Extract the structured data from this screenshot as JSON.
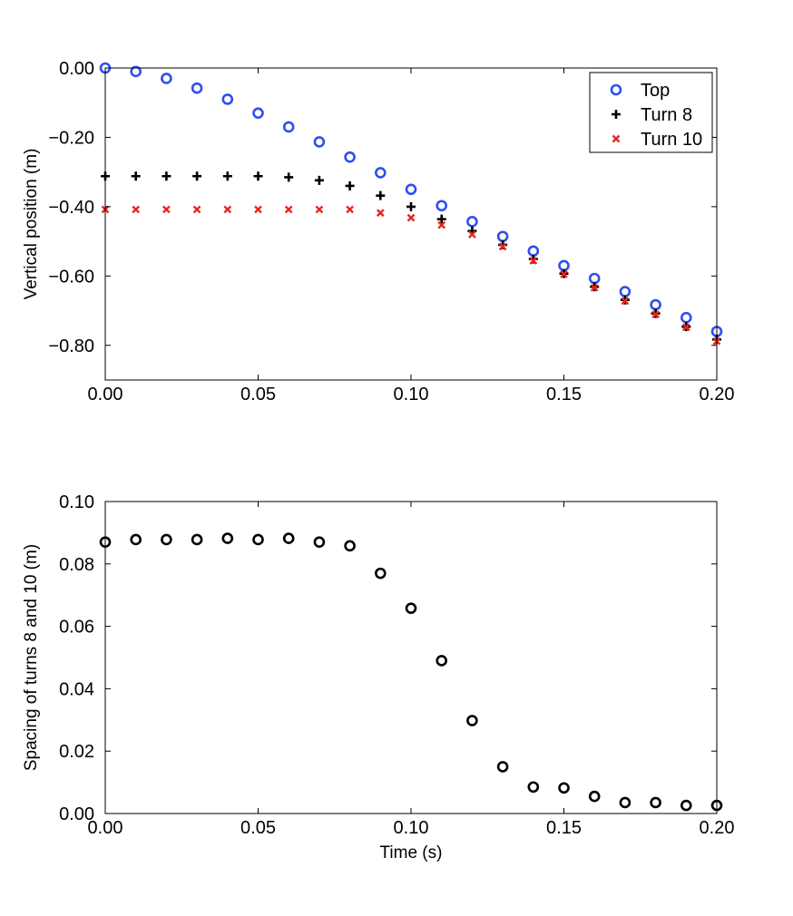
{
  "chart_data": [
    {
      "type": "scatter",
      "title": "",
      "xlabel": "",
      "ylabel": "Vertical position (m)",
      "xlim": [
        0,
        0.2
      ],
      "ylim": [
        -0.9,
        0.0
      ],
      "xticks": [
        0.0,
        0.05,
        0.1,
        0.15,
        0.2
      ],
      "xtick_labels": [
        "0.00",
        "0.05",
        "0.10",
        "0.15",
        "0.20"
      ],
      "yticks": [
        0.0,
        -0.2,
        -0.4,
        -0.6,
        -0.8
      ],
      "ytick_labels": [
        "0.00",
        "−0.20",
        "−0.40",
        "−0.60",
        "−0.80"
      ],
      "grid": false,
      "legend_position": "top-right",
      "x": [
        0.0,
        0.01,
        0.02,
        0.03,
        0.04,
        0.05,
        0.06,
        0.07,
        0.08,
        0.09,
        0.1,
        0.11,
        0.12,
        0.13,
        0.14,
        0.15,
        0.16,
        0.17,
        0.18,
        0.19,
        0.2
      ],
      "series": [
        {
          "name": "Top",
          "marker": "circle",
          "color": "#2e4ff0",
          "values": [
            0.0,
            -0.01,
            -0.03,
            -0.058,
            -0.09,
            -0.13,
            -0.17,
            -0.213,
            -0.257,
            -0.302,
            -0.35,
            -0.397,
            -0.443,
            -0.486,
            -0.528,
            -0.57,
            -0.607,
            -0.645,
            -0.683,
            -0.72,
            -0.76
          ]
        },
        {
          "name": "Turn 8",
          "marker": "plus",
          "color": "#000000",
          "values": [
            -0.312,
            -0.312,
            -0.312,
            -0.312,
            -0.312,
            -0.312,
            -0.315,
            -0.324,
            -0.34,
            -0.368,
            -0.4,
            -0.436,
            -0.47,
            -0.51,
            -0.551,
            -0.593,
            -0.631,
            -0.669,
            -0.708,
            -0.746,
            -0.783
          ]
        },
        {
          "name": "Turn 10",
          "marker": "x",
          "color": "#e8231f",
          "values": [
            -0.408,
            -0.408,
            -0.408,
            -0.408,
            -0.408,
            -0.408,
            -0.408,
            -0.408,
            -0.408,
            -0.418,
            -0.432,
            -0.453,
            -0.48,
            -0.515,
            -0.556,
            -0.595,
            -0.634,
            -0.672,
            -0.711,
            -0.748,
            -0.788
          ]
        }
      ]
    },
    {
      "type": "scatter",
      "title": "",
      "xlabel": "Time (s)",
      "ylabel": "Spacing of turns 8 and 10 (m)",
      "xlim": [
        0,
        0.2
      ],
      "ylim": [
        0.0,
        0.1
      ],
      "xticks": [
        0.0,
        0.05,
        0.1,
        0.15,
        0.2
      ],
      "xtick_labels": [
        "0.00",
        "0.05",
        "0.10",
        "0.15",
        "0.20"
      ],
      "yticks": [
        0.0,
        0.02,
        0.04,
        0.06,
        0.08,
        0.1
      ],
      "ytick_labels": [
        "0.00",
        "0.02",
        "0.04",
        "0.06",
        "0.08",
        "0.10"
      ],
      "grid": false,
      "x": [
        0.0,
        0.01,
        0.02,
        0.03,
        0.04,
        0.05,
        0.06,
        0.07,
        0.08,
        0.09,
        0.1,
        0.11,
        0.12,
        0.13,
        0.14,
        0.15,
        0.16,
        0.17,
        0.18,
        0.19,
        0.2
      ],
      "series": [
        {
          "name": "Spacing",
          "marker": "circle",
          "color": "#000000",
          "values": [
            0.087,
            0.0878,
            0.0878,
            0.0878,
            0.0882,
            0.0878,
            0.0882,
            0.087,
            0.0858,
            0.077,
            0.0658,
            0.049,
            0.0298,
            0.015,
            0.0085,
            0.0082,
            0.0055,
            0.0035,
            0.0035,
            0.0026,
            0.0026
          ]
        }
      ]
    }
  ]
}
